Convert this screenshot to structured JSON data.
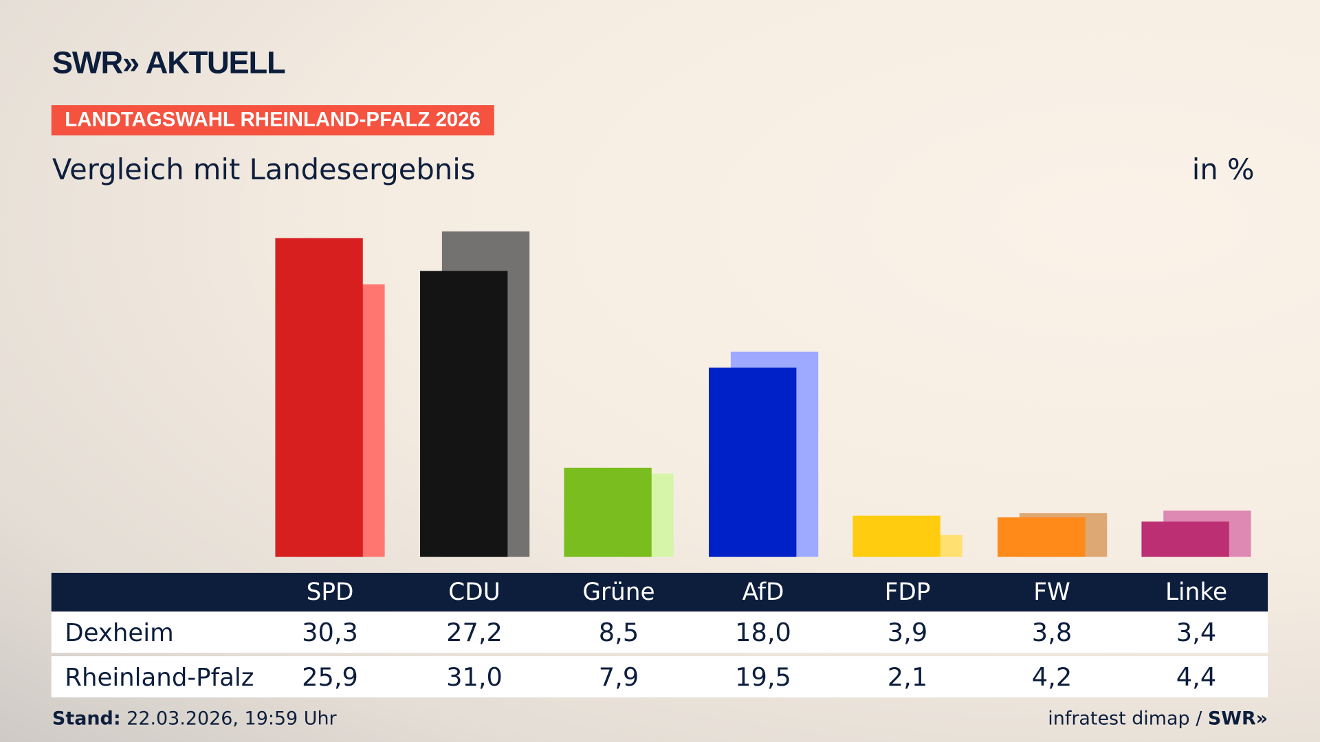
{
  "header": {
    "logo": "SWR» AKTUELL",
    "badge": "LANDTAGSWAHL RHEINLAND-PFALZ 2026",
    "subtitle": "Vergleich mit Landesergebnis",
    "unit": "in %"
  },
  "chart_data": {
    "type": "bar",
    "categories": [
      "SPD",
      "CDU",
      "Grüne",
      "AfD",
      "FDP",
      "FW",
      "Linke"
    ],
    "series": [
      {
        "name": "Dexheim",
        "values": [
          30.3,
          27.2,
          8.5,
          18.0,
          3.9,
          3.8,
          3.4
        ],
        "labels": [
          "30,3",
          "27,2",
          "8,5",
          "18,0",
          "3,9",
          "3,8",
          "3,4"
        ]
      },
      {
        "name": "Rheinland-Pfalz",
        "values": [
          25.9,
          31.0,
          7.9,
          19.5,
          2.1,
          4.2,
          4.4
        ],
        "labels": [
          "25,9",
          "31,0",
          "7,9",
          "19,5",
          "2,1",
          "4,2",
          "4,4"
        ]
      }
    ],
    "colors": {
      "primary": [
        "#d71f1f",
        "#141414",
        "#7abd1e",
        "#0020c8",
        "#ffcc10",
        "#ff8a1a",
        "#bc2f72"
      ],
      "secondary": [
        "#ff7670",
        "#747270",
        "#d6f5a8",
        "#9eaaff",
        "#ffe070",
        "#dea874",
        "#de88b4"
      ]
    },
    "ylabel": "in %"
  },
  "footer": {
    "stand_label": "Stand:",
    "stand_value": "22.03.2026, 19:59 Uhr",
    "source": "infratest dimap / ",
    "source_brand": "SWR»"
  }
}
